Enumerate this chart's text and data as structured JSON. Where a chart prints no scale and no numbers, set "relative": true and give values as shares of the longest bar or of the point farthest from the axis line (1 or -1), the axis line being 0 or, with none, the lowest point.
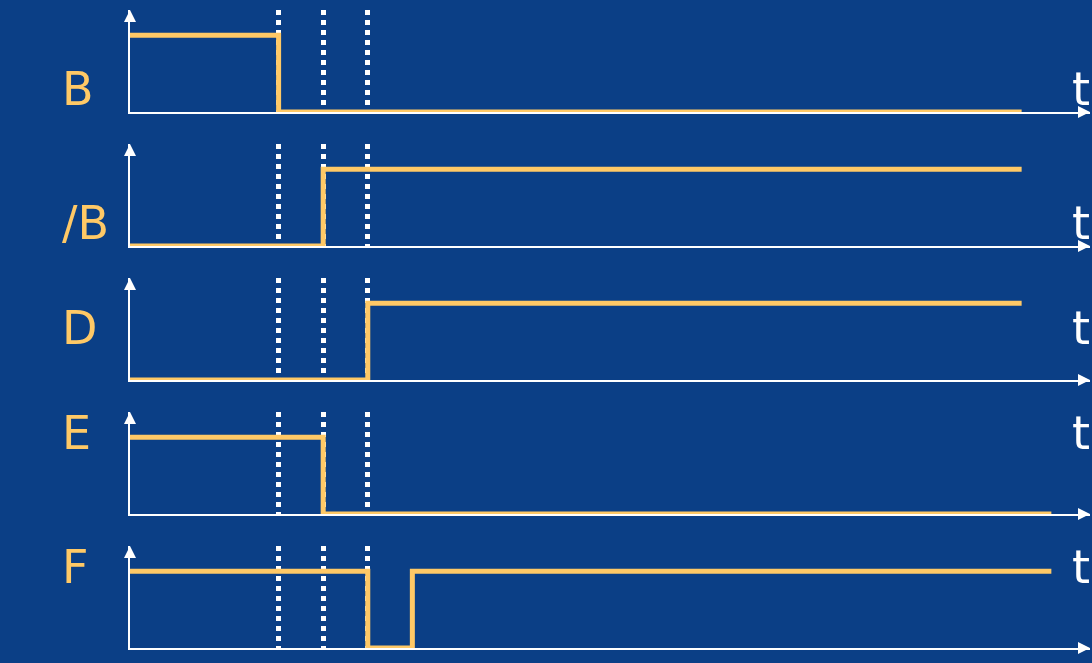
{
  "chart_data": [
    {
      "type": "step",
      "relative": true,
      "ylabel": "B",
      "xlabel": "t",
      "line_style": "solid",
      "grid": "x",
      "categories": [
        null,
        null,
        null,
        null,
        null,
        null,
        null,
        null,
        null,
        null,
        null,
        null,
        null,
        null,
        null,
        null,
        null,
        null,
        null,
        null,
        null,
        null,
        null,
        null,
        null,
        null,
        null,
        null,
        null,
        null,
        null,
        null,
        null,
        null,
        null,
        null,
        null,
        null,
        null,
        null,
        null,
        null,
        null,
        null,
        null,
        null,
        null,
        null,
        null,
        null,
        null,
        null,
        null,
        null,
        null,
        null,
        null,
        null,
        null,
        null,
        null,
        null,
        null
      ],
      "series": [
        {
          "color": "#ffc966",
          "values": [
            1,
            1,
            1,
            1,
            1,
            1,
            1,
            1,
            1,
            1,
            0,
            0,
            0,
            0,
            0,
            0,
            0,
            0,
            0,
            0,
            0,
            0,
            0,
            0,
            0,
            0,
            0,
            0,
            0,
            0,
            0,
            0,
            0,
            0,
            0,
            0,
            0,
            0,
            0,
            0,
            0,
            0,
            0,
            0,
            0,
            0,
            0,
            0,
            0,
            0,
            0,
            0,
            0,
            0,
            0,
            0,
            0,
            0,
            0,
            0,
            0,
            null,
            null
          ]
        }
      ]
    },
    {
      "type": "step",
      "relative": true,
      "ylabel": "/B",
      "xlabel": "t",
      "line_style": "solid",
      "grid": "x",
      "categories": [
        null,
        null,
        null,
        null,
        null,
        null,
        null,
        null,
        null,
        null,
        null,
        null,
        null,
        null,
        null,
        null,
        null,
        null,
        null,
        null,
        null,
        null,
        null,
        null,
        null,
        null,
        null,
        null,
        null,
        null,
        null,
        null,
        null,
        null,
        null,
        null,
        null,
        null,
        null,
        null,
        null,
        null,
        null,
        null,
        null,
        null,
        null,
        null,
        null,
        null,
        null,
        null,
        null,
        null,
        null,
        null,
        null,
        null,
        null,
        null,
        null,
        null,
        null
      ],
      "series": [
        {
          "color": "#ffc966",
          "values": [
            0,
            0,
            0,
            0,
            0,
            0,
            0,
            0,
            0,
            0,
            0,
            0,
            0,
            1,
            1,
            1,
            1,
            1,
            1,
            1,
            1,
            1,
            1,
            1,
            1,
            1,
            1,
            1,
            1,
            1,
            1,
            1,
            1,
            1,
            1,
            1,
            1,
            1,
            1,
            1,
            1,
            1,
            1,
            1,
            1,
            1,
            1,
            1,
            1,
            1,
            1,
            1,
            1,
            1,
            1,
            1,
            1,
            1,
            1,
            1,
            1,
            null,
            null
          ]
        }
      ]
    },
    {
      "type": "step",
      "relative": true,
      "ylabel": "D",
      "xlabel": "t",
      "line_style": "solid",
      "grid": "x",
      "categories": [
        null,
        null,
        null,
        null,
        null,
        null,
        null,
        null,
        null,
        null,
        null,
        null,
        null,
        null,
        null,
        null,
        null,
        null,
        null,
        null,
        null,
        null,
        null,
        null,
        null,
        null,
        null,
        null,
        null,
        null,
        null,
        null,
        null,
        null,
        null,
        null,
        null,
        null,
        null,
        null,
        null,
        null,
        null,
        null,
        null,
        null,
        null,
        null,
        null,
        null,
        null,
        null,
        null,
        null,
        null,
        null,
        null,
        null,
        null,
        null,
        null,
        null,
        null
      ],
      "series": [
        {
          "color": "#ffc966",
          "values": [
            0,
            0,
            0,
            0,
            0,
            0,
            0,
            0,
            0,
            0,
            0,
            0,
            0,
            0,
            0,
            0,
            1,
            1,
            1,
            1,
            1,
            1,
            1,
            1,
            1,
            1,
            1,
            1,
            1,
            1,
            1,
            1,
            1,
            1,
            1,
            1,
            1,
            1,
            1,
            1,
            1,
            1,
            1,
            1,
            1,
            1,
            1,
            1,
            1,
            1,
            1,
            1,
            1,
            1,
            1,
            1,
            1,
            1,
            1,
            1,
            1,
            null,
            null
          ]
        }
      ]
    },
    {
      "type": "step",
      "relative": true,
      "ylabel": "E",
      "xlabel": "t",
      "line_style": "solid",
      "grid": "x",
      "categories": [
        null,
        null,
        null,
        null,
        null,
        null,
        null,
        null,
        null,
        null,
        null,
        null,
        null,
        null,
        null,
        null,
        null,
        null,
        null,
        null,
        null,
        null,
        null,
        null,
        null,
        null,
        null,
        null,
        null,
        null,
        null,
        null,
        null,
        null,
        null,
        null,
        null,
        null,
        null,
        null,
        null,
        null,
        null,
        null,
        null,
        null,
        null,
        null,
        null,
        null,
        null,
        null,
        null,
        null,
        null,
        null,
        null,
        null,
        null,
        null,
        null,
        null,
        null
      ],
      "series": [
        {
          "color": "#ffc966",
          "values": [
            1,
            1,
            1,
            1,
            1,
            1,
            1,
            1,
            1,
            1,
            1,
            1,
            1,
            0,
            0,
            0,
            0,
            0,
            0,
            0,
            0,
            0,
            0,
            0,
            0,
            0,
            0,
            0,
            0,
            0,
            0,
            0,
            0,
            0,
            0,
            0,
            0,
            0,
            0,
            0,
            0,
            0,
            0,
            0,
            0,
            0,
            0,
            0,
            0,
            0,
            0,
            0,
            0,
            0,
            0,
            0,
            0,
            0,
            0,
            0,
            0,
            0,
            0
          ]
        }
      ]
    },
    {
      "type": "step",
      "relative": true,
      "ylabel": "F",
      "xlabel": "t",
      "line_style": "solid",
      "grid": "x",
      "categories": [
        null,
        null,
        null,
        null,
        null,
        null,
        null,
        null,
        null,
        null,
        null,
        null,
        null,
        null,
        null,
        null,
        null,
        null,
        null,
        null,
        null,
        null,
        null,
        null,
        null,
        null,
        null,
        null,
        null,
        null,
        null,
        null,
        null,
        null,
        null,
        null,
        null,
        null,
        null,
        null,
        null,
        null,
        null,
        null,
        null,
        null,
        null,
        null,
        null,
        null,
        null,
        null,
        null,
        null,
        null,
        null,
        null,
        null,
        null,
        null,
        null,
        null,
        null
      ],
      "series": [
        {
          "color": "#ffc966",
          "values": [
            1,
            1,
            1,
            1,
            1,
            1,
            1,
            1,
            1,
            1,
            1,
            1,
            1,
            1,
            1,
            1,
            0,
            0,
            0,
            1,
            1,
            1,
            1,
            1,
            1,
            1,
            1,
            1,
            1,
            1,
            1,
            1,
            1,
            1,
            1,
            1,
            1,
            1,
            1,
            1,
            1,
            1,
            1,
            1,
            1,
            1,
            1,
            1,
            1,
            1,
            1,
            1,
            1,
            1,
            1,
            1,
            1,
            1,
            1,
            1,
            1,
            1,
            1
          ]
        }
      ]
    }
  ]
}
